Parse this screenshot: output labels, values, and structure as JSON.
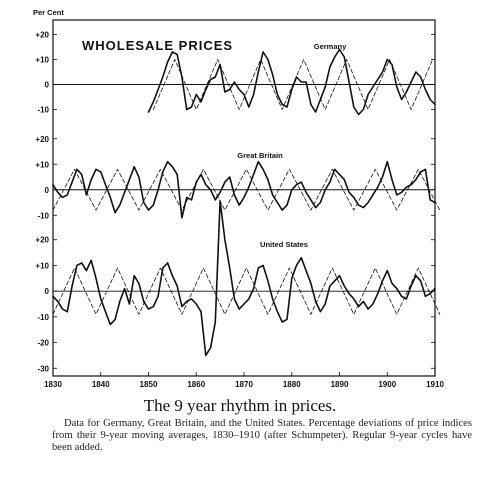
{
  "y_unit_label": "Per Cent",
  "chart_data": {
    "type": "line",
    "title": "WHOLESALE PRICES",
    "x_ticks": [
      "1830",
      "1840",
      "1850",
      "1860",
      "1870",
      "1880",
      "1890",
      "1900",
      "1910"
    ],
    "xlim": [
      1830,
      1910
    ],
    "panels": [
      {
        "name": "Germany",
        "ylim": [
          -15,
          25
        ],
        "y_ticks": [
          20,
          10,
          0,
          -10
        ],
        "y_tick_labels": [
          "+20",
          "+10",
          "0",
          "-10"
        ],
        "series": [
          {
            "style": "solid",
            "x": [
              1850,
              1851,
              1852,
              1853,
              1854,
              1855,
              1856,
              1857,
              1858,
              1859,
              1860,
              1861,
              1862,
              1863,
              1864,
              1865,
              1866,
              1867,
              1868,
              1869,
              1870,
              1871,
              1872,
              1873,
              1874,
              1875,
              1876,
              1877,
              1878,
              1879,
              1880,
              1881,
              1882,
              1883,
              1884,
              1885,
              1886,
              1887,
              1888,
              1889,
              1890,
              1891,
              1892,
              1893,
              1894,
              1895,
              1896,
              1897,
              1898,
              1899,
              1900,
              1901,
              1902,
              1903,
              1904,
              1905,
              1906,
              1907,
              1908,
              1909,
              1910
            ],
            "y": [
              -11,
              -7,
              -2,
              3,
              9,
              13,
              12,
              3,
              -10,
              -9,
              -4,
              -7,
              -2,
              2,
              3,
              8,
              -3,
              -2,
              1,
              -2,
              -4,
              -9,
              -4,
              5,
              13,
              10,
              4,
              -4,
              -8,
              -9,
              -2,
              3,
              1,
              1,
              -8,
              -11,
              -6,
              -1,
              7,
              11,
              14,
              11,
              1,
              -9,
              -12,
              -10,
              -4,
              -1,
              2,
              5,
              10,
              8,
              -1,
              -6,
              -3,
              1,
              5,
              3,
              -2,
              -6,
              -8
            ]
          },
          {
            "style": "dashed",
            "x": [
              1851,
              1855.5,
              1860,
              1864.5,
              1869,
              1873.5,
              1878,
              1882.5,
              1887,
              1891.5,
              1896,
              1900.5,
              1905,
              1909.5
            ],
            "y": [
              -10,
              10,
              -10,
              10,
              -10,
              10,
              -10,
              10,
              -10,
              10,
              -10,
              10,
              -10,
              10
            ]
          }
        ]
      },
      {
        "name": "Great Britain",
        "ylim": [
          -15,
          25
        ],
        "y_ticks": [
          20,
          10,
          0,
          -10
        ],
        "y_tick_labels": [
          "+20",
          "+10",
          "0",
          "-10"
        ],
        "series": [
          {
            "style": "solid",
            "x": [
              1830,
              1831,
              1832,
              1833,
              1834,
              1835,
              1836,
              1837,
              1838,
              1839,
              1840,
              1841,
              1842,
              1843,
              1844,
              1845,
              1846,
              1847,
              1848,
              1849,
              1850,
              1851,
              1852,
              1853,
              1854,
              1855,
              1856,
              1857,
              1858,
              1859,
              1860,
              1861,
              1862,
              1863,
              1864,
              1865,
              1866,
              1867,
              1868,
              1869,
              1870,
              1871,
              1872,
              1873,
              1874,
              1875,
              1876,
              1877,
              1878,
              1879,
              1880,
              1881,
              1882,
              1883,
              1884,
              1885,
              1886,
              1887,
              1888,
              1889,
              1890,
              1891,
              1892,
              1893,
              1894,
              1895,
              1896,
              1897,
              1898,
              1899,
              1900,
              1901,
              1902,
              1903,
              1904,
              1905,
              1906,
              1907,
              1908,
              1909,
              1910
            ],
            "y": [
              2,
              -1,
              -3,
              -2,
              3,
              8,
              6,
              -2,
              4,
              8,
              7,
              2,
              -3,
              -9,
              -6,
              -1,
              4,
              9,
              5,
              -5,
              -8,
              -6,
              0,
              7,
              11,
              9,
              6,
              -11,
              -3,
              -4,
              3,
              6,
              2,
              0,
              -4,
              -1,
              3,
              5,
              -2,
              -6,
              -3,
              1,
              6,
              11,
              8,
              4,
              -2,
              -5,
              -8,
              -6,
              0,
              2,
              3,
              -1,
              -4,
              -7,
              -5,
              0,
              3,
              8,
              6,
              4,
              -1,
              -3,
              -6,
              -7,
              -5,
              -2,
              1,
              5,
              11,
              4,
              -2,
              -1,
              1,
              2,
              4,
              7,
              8,
              -4,
              -5
            ]
          },
          {
            "style": "dashed",
            "x": [
              1830,
              1834.5,
              1839,
              1843.5,
              1848,
              1852.5,
              1857,
              1861.5,
              1866,
              1870.5,
              1875,
              1879.5,
              1884,
              1888.5,
              1893,
              1897.5,
              1902,
              1906.5,
              1911
            ],
            "y": [
              -8,
              8,
              -8,
              8,
              -8,
              8,
              -8,
              8,
              -8,
              8,
              -8,
              8,
              -8,
              8,
              -8,
              8,
              -8,
              8,
              -8
            ]
          }
        ]
      },
      {
        "name": "United States",
        "ylim": [
          -33,
          23
        ],
        "y_ticks": [
          20,
          10,
          0,
          -10,
          -20,
          -30
        ],
        "y_tick_labels": [
          "+20",
          "+10",
          "0",
          "-10",
          "-20",
          "-30"
        ],
        "series": [
          {
            "style": "solid",
            "x": [
              1830,
              1831,
              1832,
              1833,
              1834,
              1835,
              1836,
              1837,
              1838,
              1839,
              1840,
              1841,
              1842,
              1843,
              1844,
              1845,
              1846,
              1847,
              1848,
              1849,
              1850,
              1851,
              1852,
              1853,
              1854,
              1855,
              1856,
              1857,
              1858,
              1859,
              1860,
              1861,
              1862,
              1863,
              1864,
              1865,
              1866,
              1867,
              1868,
              1869,
              1870,
              1871,
              1872,
              1873,
              1874,
              1875,
              1876,
              1877,
              1878,
              1879,
              1880,
              1881,
              1882,
              1883,
              1884,
              1885,
              1886,
              1887,
              1888,
              1889,
              1890,
              1891,
              1892,
              1893,
              1894,
              1895,
              1896,
              1897,
              1898,
              1899,
              1900,
              1901,
              1902,
              1903,
              1904,
              1905,
              1906,
              1907,
              1908,
              1909,
              1910
            ],
            "y": [
              -2,
              -4,
              -7,
              -8,
              2,
              10,
              11,
              8,
              12,
              5,
              -3,
              -8,
              -13,
              -11,
              -4,
              1,
              -5,
              6,
              3,
              -4,
              -7,
              -6,
              -2,
              9,
              11,
              6,
              2,
              -6,
              -4,
              -3,
              -5,
              -8,
              -25,
              -22,
              -12,
              35,
              20,
              9,
              -3,
              -7,
              -5,
              -3,
              1,
              9,
              10,
              4,
              -3,
              -8,
              -12,
              -11,
              5,
              10,
              13,
              8,
              3,
              -4,
              -8,
              -5,
              2,
              4,
              6,
              2,
              -1,
              -3,
              -6,
              -4,
              -7,
              -5,
              -1,
              4,
              8,
              3,
              1,
              -2,
              -3,
              2,
              6,
              4,
              -2,
              -1,
              1
            ]
          },
          {
            "style": "dashed",
            "x": [
              1830,
              1834.5,
              1839,
              1843.5,
              1848,
              1852.5,
              1857,
              1861.5,
              1866,
              1870.5,
              1875,
              1879.5,
              1884,
              1888.5,
              1893,
              1897.5,
              1902,
              1906.5,
              1911
            ],
            "y": [
              -9,
              9,
              -9,
              9,
              -9,
              9,
              -9,
              9,
              -9,
              9,
              -9,
              9,
              -9,
              9,
              -9,
              9,
              -9,
              9,
              -9
            ]
          }
        ]
      }
    ]
  },
  "caption": {
    "title": "The 9 year rhythm in prices.",
    "text": "Data for Germany, Great Britain, and the United States. Percentage deviations of price indices from their 9-year moving averages, 1830–1910 (after Schumpeter). Regular 9-year cycles have been added."
  }
}
